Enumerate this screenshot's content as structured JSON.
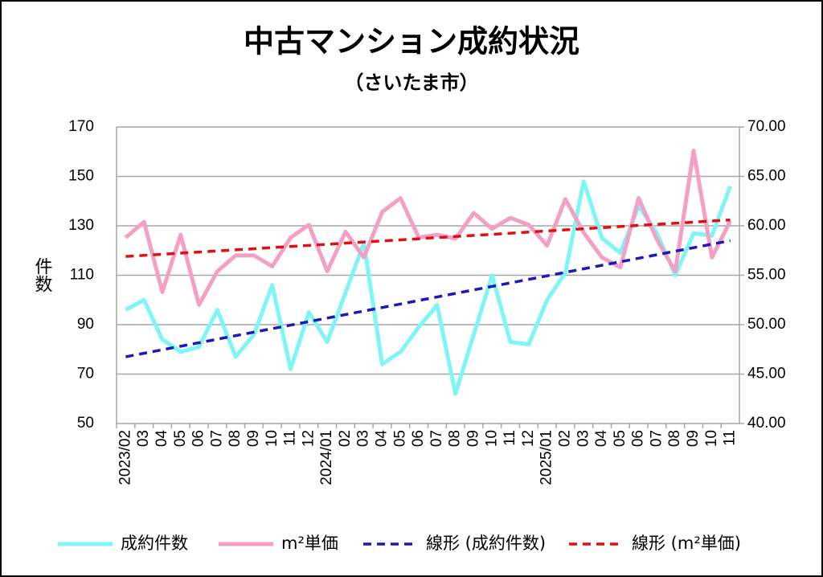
{
  "chart_data": {
    "type": "line",
    "title": "中古マンション成約状況",
    "subtitle": "（さいたま市）",
    "y_label": "件数",
    "categories": [
      "2023/02",
      "03",
      "04",
      "05",
      "06",
      "07",
      "08",
      "09",
      "10",
      "11",
      "12",
      "2024/01",
      "02",
      "03",
      "04",
      "05",
      "06",
      "07",
      "08",
      "09",
      "10",
      "11",
      "12",
      "2025/01",
      "02",
      "03",
      "04",
      "05",
      "06",
      "07",
      "08",
      "09",
      "10",
      "11"
    ],
    "series": [
      {
        "name": "成約件数",
        "color": "#7ff5f5",
        "values": [
          96,
          100,
          84,
          79,
          81,
          96,
          77,
          86,
          106,
          72,
          95,
          83,
          103,
          123,
          74,
          79,
          89,
          98,
          62,
          86,
          110,
          83,
          82,
          100,
          111,
          148,
          125,
          119,
          138,
          127,
          110,
          127,
          126,
          146
        ]
      },
      {
        "name": "m²単価",
        "color": "#f4a0c4",
        "axis": "y2",
        "values": [
          58.8,
          60.4,
          53.3,
          59.1,
          52.0,
          55.4,
          57.0,
          57.0,
          55.9,
          58.8,
          60.1,
          55.4,
          59.4,
          56.8,
          61.4,
          62.8,
          58.8,
          59.1,
          58.7,
          61.3,
          59.7,
          60.8,
          60.1,
          58.0,
          62.7,
          59.3,
          56.8,
          55.8,
          62.8,
          58.6,
          55.4,
          67.6,
          56.8,
          60.5
        ]
      },
      {
        "name": "線形 (成約件数)",
        "color": "#1a1ab8",
        "dashed": true,
        "values": [
          77,
          78.42,
          79.85,
          81.27,
          82.7,
          84.12,
          85.55,
          86.97,
          88.39,
          89.82,
          91.24,
          92.67,
          94.09,
          95.52,
          96.94,
          98.36,
          99.79,
          101.21,
          102.64,
          104.06,
          105.48,
          106.91,
          108.33,
          109.76,
          111.18,
          112.61,
          114.03,
          115.45,
          116.88,
          118.3,
          119.73,
          121.15,
          122.58,
          124
        ]
      },
      {
        "name": "線形 (m²単価)",
        "color": "#e01010",
        "dashed": true,
        "axis": "y2",
        "values": [
          56.9,
          57.01,
          57.12,
          57.24,
          57.35,
          57.46,
          57.57,
          57.68,
          57.8,
          57.91,
          58.02,
          58.13,
          58.25,
          58.36,
          58.47,
          58.58,
          58.69,
          58.81,
          58.92,
          59.03,
          59.14,
          59.25,
          59.37,
          59.48,
          59.59,
          59.7,
          59.81,
          59.93,
          60.04,
          60.15,
          60.26,
          60.37,
          60.49,
          60.6
        ]
      }
    ],
    "ylim": [
      50,
      170
    ],
    "yticks": [
      50,
      70,
      90,
      110,
      130,
      150,
      170
    ],
    "y2lim": [
      40,
      70
    ],
    "y2ticks": [
      {
        "value": 40,
        "label": "40.00"
      },
      {
        "value": 45,
        "label": "45.00"
      },
      {
        "value": 50,
        "label": "50.00"
      },
      {
        "value": 55,
        "label": "55.00"
      },
      {
        "value": 60,
        "label": "60.00"
      },
      {
        "value": 65,
        "label": "65.00"
      },
      {
        "value": 70,
        "label": "70.00"
      }
    ],
    "grid": true,
    "legend": "bottom"
  }
}
